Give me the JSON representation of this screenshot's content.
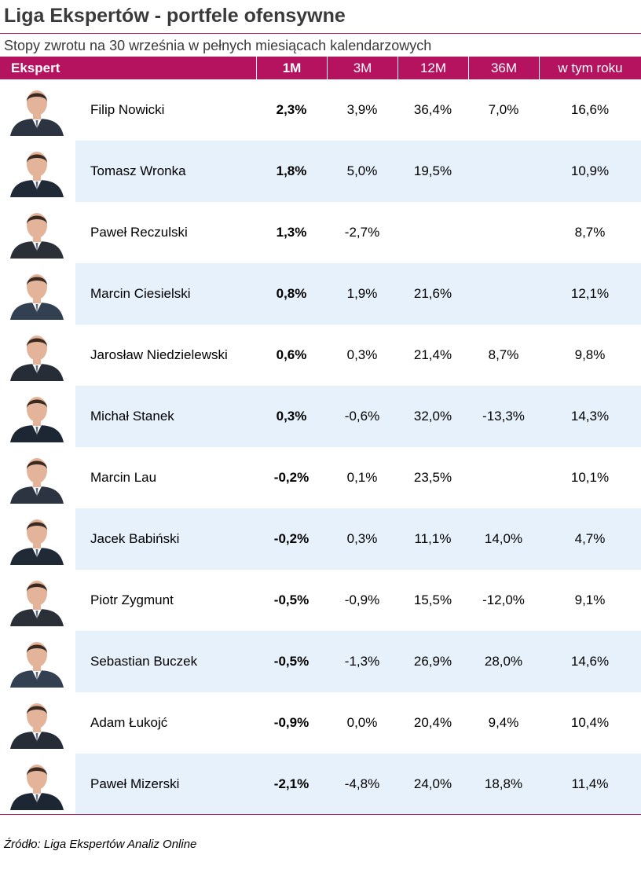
{
  "title": "Liga Ekspertów - portfele ofensywne",
  "subtitle": "Stopy zwrotu na 30 września w pełnych miesiącach kalendarzowych",
  "footer": "Źródło: Liga Ekspertów Analiz Online",
  "colors": {
    "header": "#b5135f",
    "rule": "#b41a63",
    "row_alt": "#e7f1fb"
  },
  "chart_data": {
    "type": "table",
    "columns": [
      "Ekspert",
      "1M",
      "3M",
      "12M",
      "36M",
      "w tym roku"
    ],
    "rows": [
      {
        "name": "Filip Nowicki",
        "m1": "2,3%",
        "m3": "3,9%",
        "m12": "36,4%",
        "m36": "7,0%",
        "ytd": "16,6%"
      },
      {
        "name": "Tomasz Wronka",
        "m1": "1,8%",
        "m3": "5,0%",
        "m12": "19,5%",
        "m36": "",
        "ytd": "10,9%"
      },
      {
        "name": "Paweł Reczulski",
        "m1": "1,3%",
        "m3": "-2,7%",
        "m12": "",
        "m36": "",
        "ytd": "8,7%"
      },
      {
        "name": "Marcin Ciesielski",
        "m1": "0,8%",
        "m3": "1,9%",
        "m12": "21,6%",
        "m36": "",
        "ytd": "12,1%"
      },
      {
        "name": "Jarosław Niedzielewski",
        "m1": "0,6%",
        "m3": "0,3%",
        "m12": "21,4%",
        "m36": "8,7%",
        "ytd": "9,8%"
      },
      {
        "name": "Michał Stanek",
        "m1": "0,3%",
        "m3": "-0,6%",
        "m12": "32,0%",
        "m36": "-13,3%",
        "ytd": "14,3%"
      },
      {
        "name": "Marcin Lau",
        "m1": "-0,2%",
        "m3": "0,1%",
        "m12": "23,5%",
        "m36": "",
        "ytd": "10,1%"
      },
      {
        "name": "Jacek Babiński",
        "m1": "-0,2%",
        "m3": "0,3%",
        "m12": "11,1%",
        "m36": "14,0%",
        "ytd": "4,7%"
      },
      {
        "name": "Piotr Zygmunt",
        "m1": "-0,5%",
        "m3": "-0,9%",
        "m12": "15,5%",
        "m36": "-12,0%",
        "ytd": "9,1%"
      },
      {
        "name": "Sebastian Buczek",
        "m1": "-0,5%",
        "m3": "-1,3%",
        "m12": "26,9%",
        "m36": "28,0%",
        "ytd": "14,6%"
      },
      {
        "name": "Adam Łukojć",
        "m1": "-0,9%",
        "m3": "0,0%",
        "m12": "20,4%",
        "m36": "9,4%",
        "ytd": "10,4%"
      },
      {
        "name": "Paweł Mizerski",
        "m1": "-2,1%",
        "m3": "-4,8%",
        "m12": "24,0%",
        "m36": "18,8%",
        "ytd": "11,4%"
      }
    ]
  }
}
